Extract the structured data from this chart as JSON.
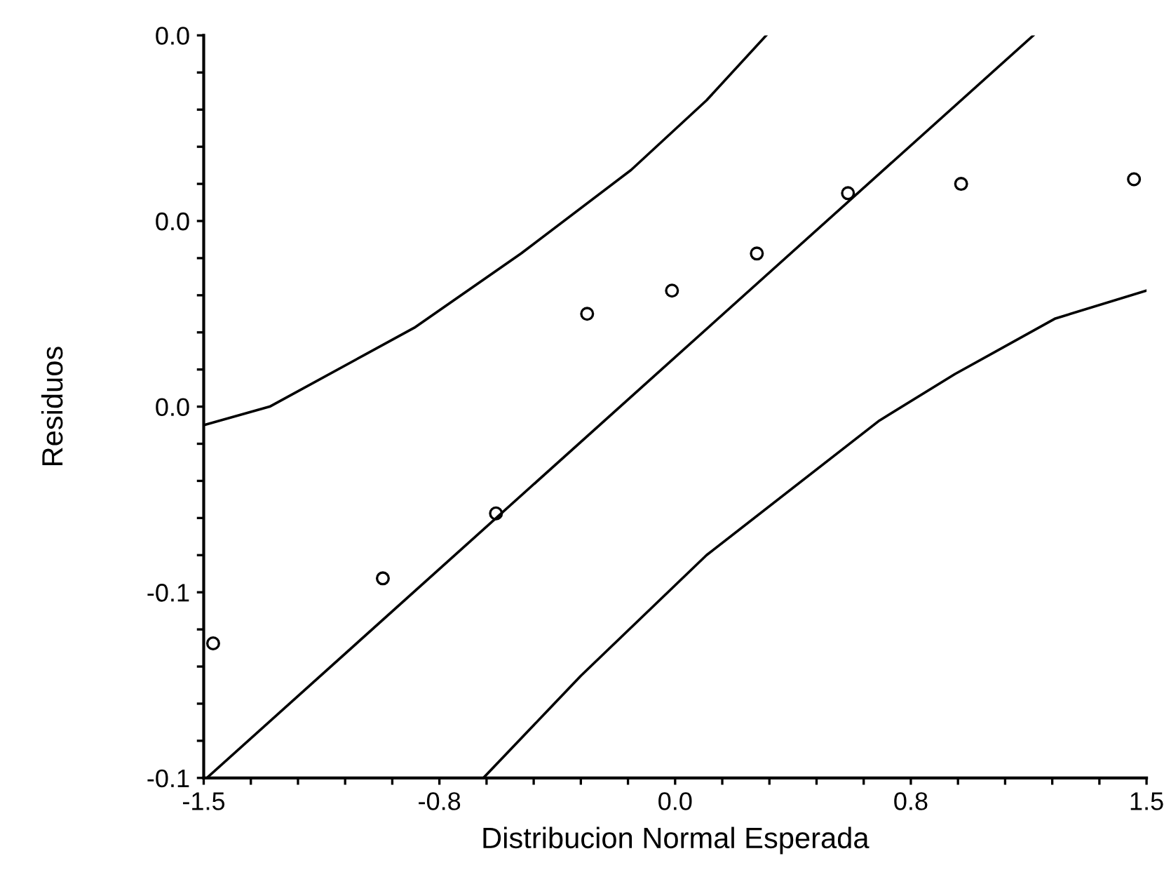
{
  "chart_data": {
    "type": "scatter",
    "xlabel": "Distribucion Normal Esperada",
    "ylabel": "Residuos",
    "marker": "circle",
    "grid": false,
    "legend": false,
    "xlim": [
      -1.5,
      1.5
    ],
    "ylim": [
      -0.12,
      0.04
    ],
    "xticks": [
      -1.5,
      {
        "value": -1.35,
        "label": null
      },
      {
        "value": -1.2,
        "label": null
      },
      {
        "value": -1.05,
        "label": null
      },
      {
        "value": -0.9,
        "label": null
      },
      {
        "value": -0.75,
        "label": "-0.8"
      },
      {
        "value": -0.6,
        "label": null
      },
      {
        "value": -0.45,
        "label": null
      },
      {
        "value": -0.3,
        "label": null
      },
      {
        "value": -0.15,
        "label": null
      },
      {
        "value": 0,
        "label": "0.0"
      },
      {
        "value": 0.15,
        "label": null
      },
      {
        "value": 0.3,
        "label": null
      },
      {
        "value": 0.45,
        "label": null
      },
      {
        "value": 0.6,
        "label": null
      },
      {
        "value": 0.75,
        "label": "0.8"
      },
      {
        "value": 0.9,
        "label": null
      },
      {
        "value": 1.05,
        "label": null
      },
      {
        "value": 1.2,
        "label": null
      },
      {
        "value": 1.35,
        "label": null
      },
      1.5
    ],
    "yticks": [
      {
        "value": -0.12,
        "label": "-0.1"
      },
      {
        "value": -0.112,
        "label": null
      },
      {
        "value": -0.104,
        "label": null
      },
      {
        "value": -0.096,
        "label": null
      },
      {
        "value": -0.088,
        "label": null
      },
      {
        "value": -0.08,
        "label": "-0.1"
      },
      {
        "value": -0.072,
        "label": null
      },
      {
        "value": -0.064,
        "label": null
      },
      {
        "value": -0.056,
        "label": null
      },
      {
        "value": -0.048,
        "label": null
      },
      {
        "value": -0.04,
        "label": "0.0"
      },
      {
        "value": -0.032,
        "label": null
      },
      {
        "value": -0.024,
        "label": null
      },
      {
        "value": -0.016,
        "label": null
      },
      {
        "value": -0.008,
        "label": null
      },
      {
        "value": 0,
        "label": "0.0"
      },
      {
        "value": 0.008,
        "label": null
      },
      {
        "value": 0.016,
        "label": null
      },
      {
        "value": 0.024,
        "label": null
      },
      {
        "value": 0.032,
        "label": null
      },
      {
        "value": 0.04,
        "label": "0.0"
      }
    ],
    "series": [
      {
        "color": "#000000",
        "x": [
          -1.47,
          -0.93,
          -0.57,
          -0.28,
          -0.01,
          0.26,
          0.55,
          0.91,
          1.46
        ],
        "values": [
          -0.091,
          -0.077,
          -0.063,
          -0.02,
          -0.015,
          -0.007,
          0.006,
          0.008,
          0.009
        ]
      },
      {
        "type": "line",
        "color": "#000000",
        "marker": "none",
        "x": [
          -1.49,
          1.14
        ],
        "values": [
          -0.12,
          0.04
        ]
      },
      {
        "type": "line",
        "color": "#000000",
        "marker": "none",
        "x": [
          -1.5,
          -1.29,
          -0.83,
          -0.49,
          -0.14,
          0.1,
          0.29
        ],
        "values": [
          -0.044,
          -0.04,
          -0.023,
          -0.007,
          0.011,
          0.026,
          0.04
        ]
      },
      {
        "type": "line",
        "color": "#000000",
        "marker": "none",
        "x": [
          -0.61,
          -0.3,
          0.1,
          0.65,
          0.89,
          1.21,
          1.5
        ],
        "values": [
          -0.12,
          -0.098,
          -0.072,
          -0.043,
          -0.033,
          -0.021,
          -0.015
        ]
      }
    ]
  }
}
